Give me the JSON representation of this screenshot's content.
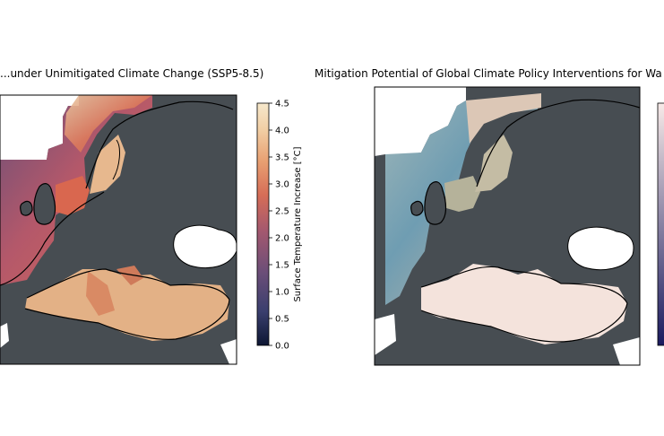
{
  "panel_left": {
    "title": "...under Unimitigated Climate Change (SSP5-8.5)",
    "colorbar": {
      "label": "Surface Temperature Increase [°C]",
      "ticks": [
        "0.0",
        "0.5",
        "1.0",
        "1.5",
        "2.0",
        "2.5",
        "3.0",
        "3.5",
        "4.0",
        "4.5"
      ],
      "range": [
        0.0,
        4.5
      ],
      "colors": [
        "#0d1633",
        "#3a3f6e",
        "#6b4e78",
        "#a3586f",
        "#d66d57",
        "#e8a072",
        "#f1cea4",
        "#f6e8cc"
      ]
    }
  },
  "panel_right": {
    "title": "Mitigation Potential of Global Climate Policy Interventions for Wa"
  },
  "map_colors": {
    "land": "#474d52",
    "ocean_outside": "#ffffff",
    "coast": "#000000"
  }
}
